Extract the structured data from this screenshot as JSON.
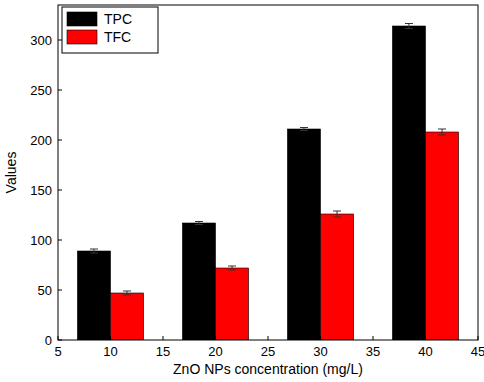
{
  "chart_data": {
    "type": "bar",
    "x_label": "ZnO NPs concentration (mg/L)",
    "y_label": "Values",
    "x": [
      10,
      20,
      30,
      40
    ],
    "series": [
      {
        "name": "TPC",
        "color": "#000000",
        "values": [
          89,
          117,
          211,
          314
        ],
        "errors": [
          2,
          1.5,
          1.5,
          2.5
        ]
      },
      {
        "name": "TFC",
        "color": "#ff0000",
        "values": [
          47,
          72,
          126,
          208
        ],
        "errors": [
          2,
          2,
          3,
          3
        ]
      }
    ],
    "xlim": [
      5,
      45
    ],
    "xticks": [
      5,
      10,
      15,
      20,
      25,
      30,
      35,
      40,
      45
    ],
    "ylim": [
      0,
      335
    ],
    "yticks": [
      0,
      50,
      100,
      150,
      200,
      250,
      300
    ],
    "grid": false,
    "legend": "upper-left"
  }
}
